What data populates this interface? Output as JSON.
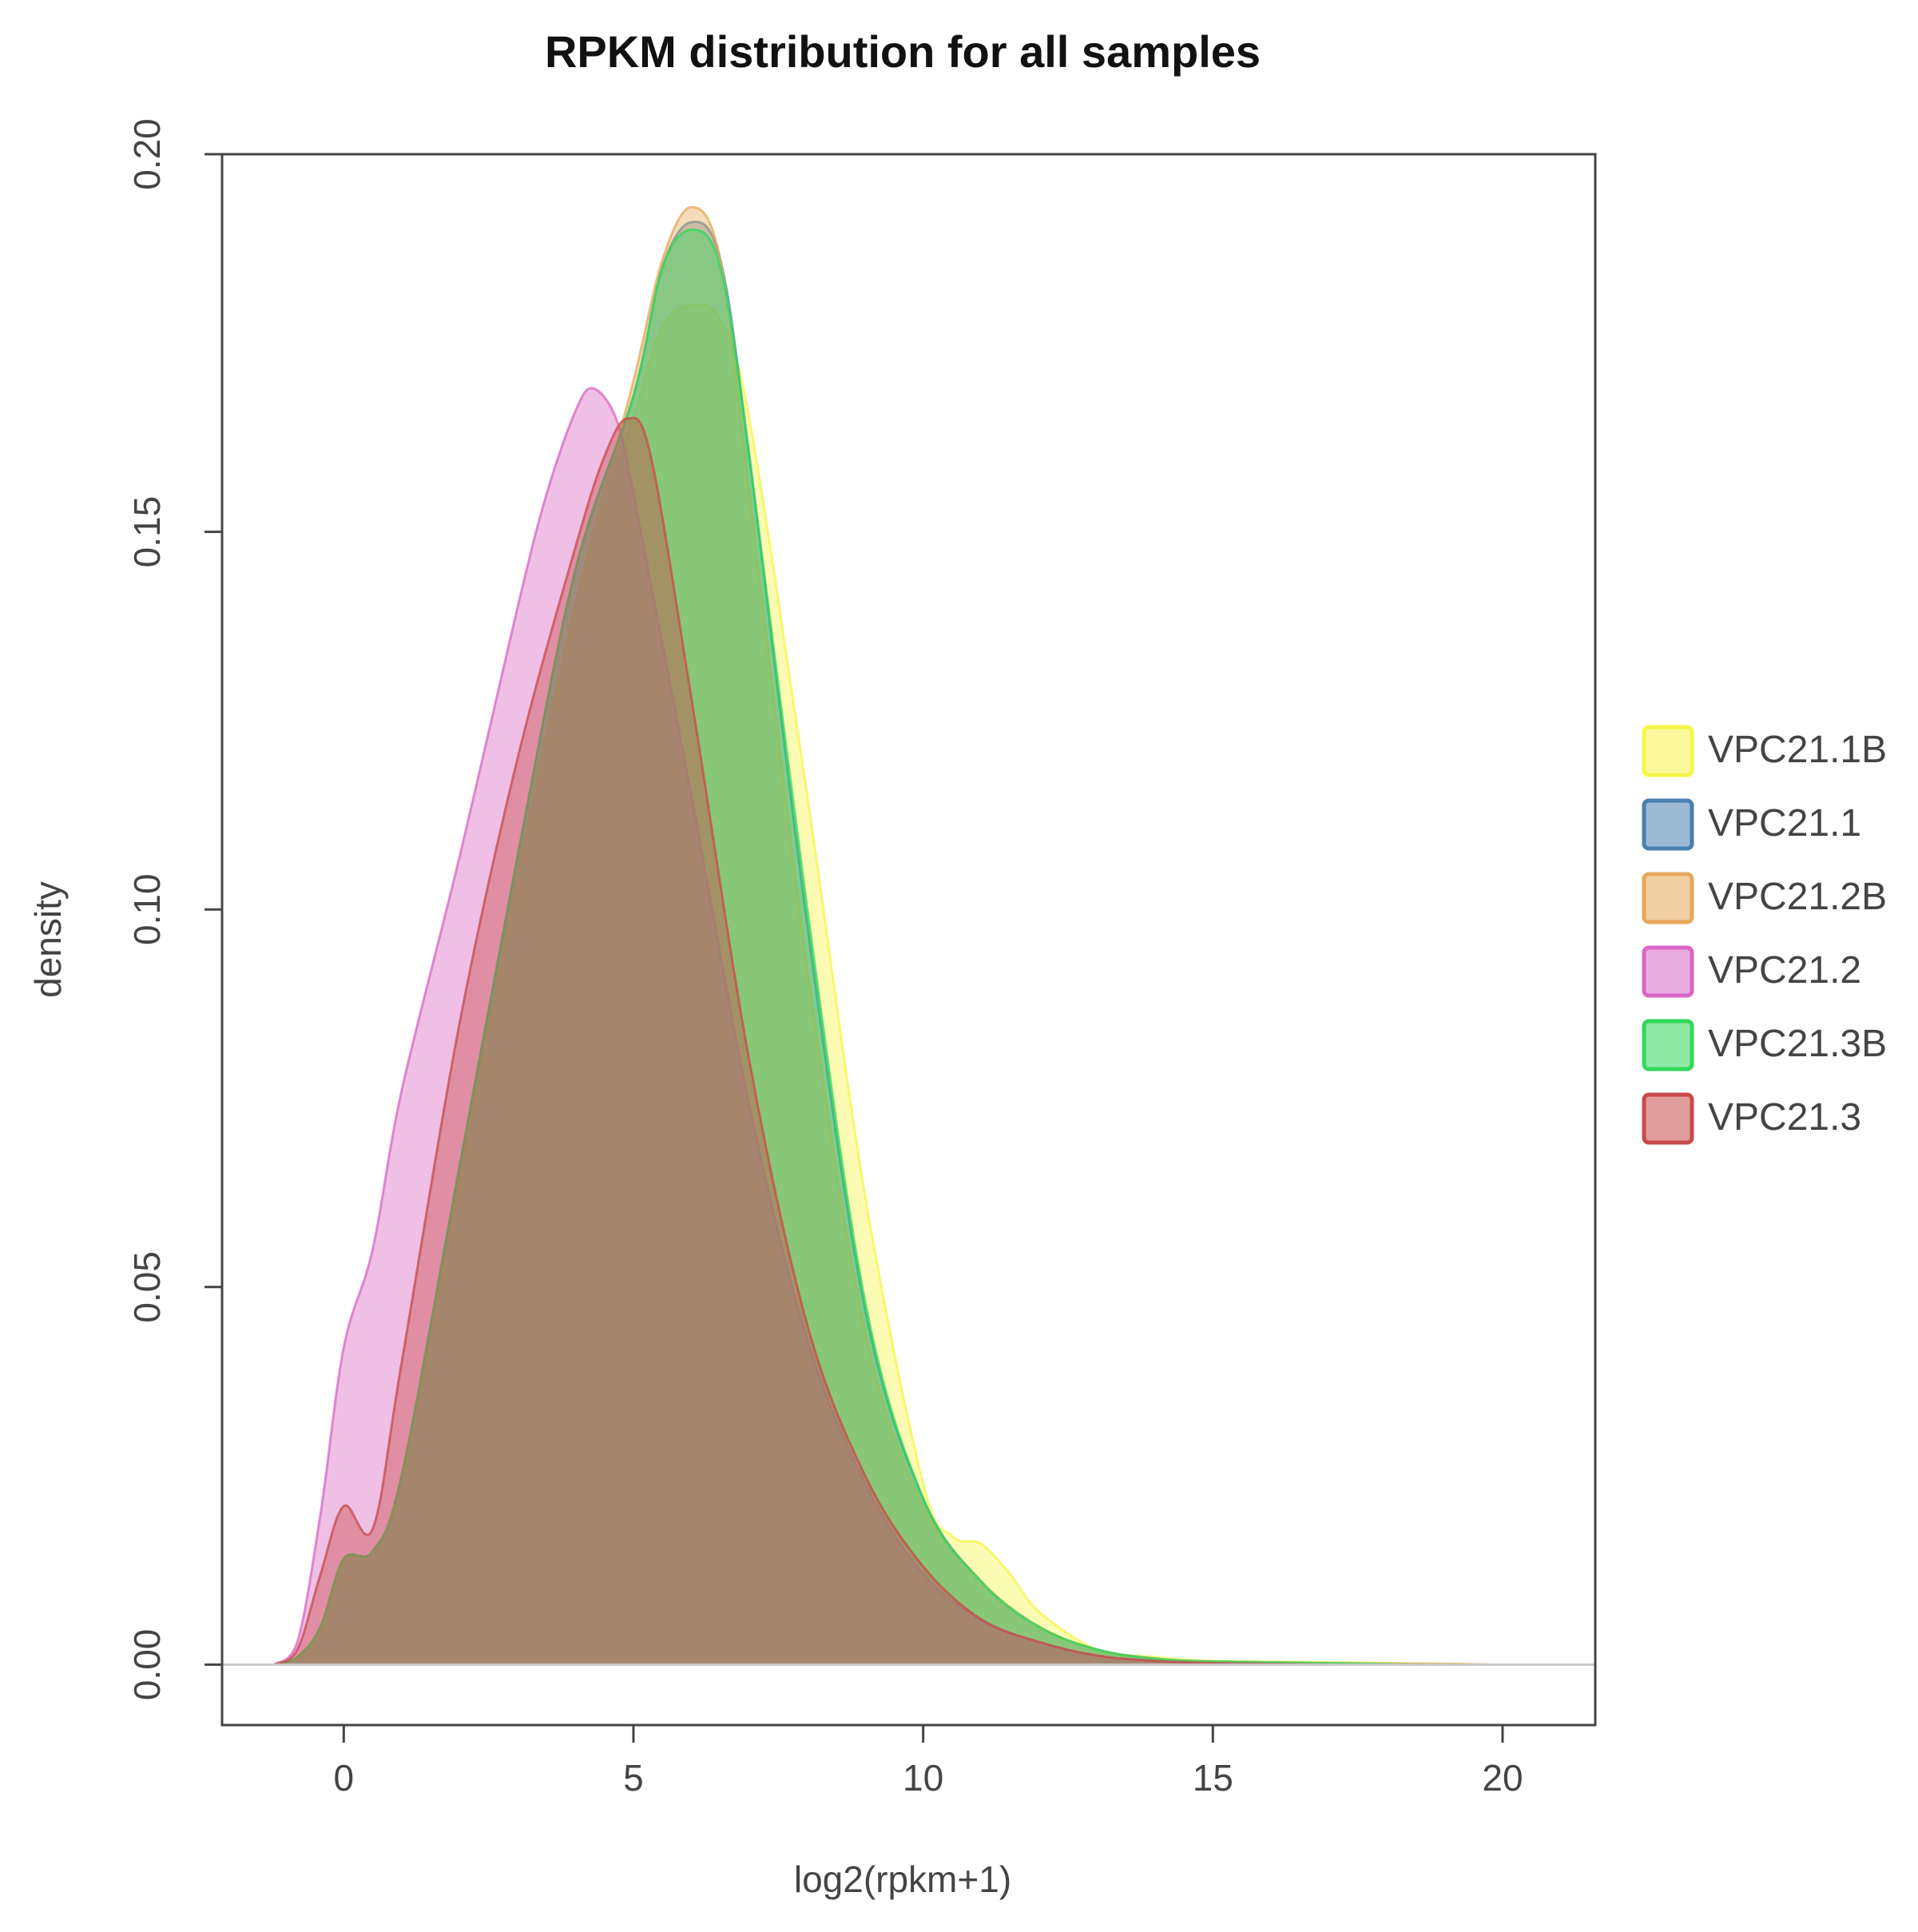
{
  "chart_data": {
    "type": "area",
    "title": "RPKM distribution for all samples",
    "xlabel": "log2(rpkm+1)",
    "ylabel": "density",
    "xlim": [
      -2.1,
      21.6
    ],
    "ylim": [
      -0.008,
      0.2
    ],
    "xticks": [
      0,
      5,
      10,
      15,
      20
    ],
    "yticks": [
      0.0,
      0.05,
      0.1,
      0.15,
      0.2
    ],
    "xtick_labels": [
      "0",
      "5",
      "10",
      "15",
      "20"
    ],
    "ytick_labels": [
      "0.00",
      "0.05",
      "0.10",
      "0.15",
      "0.20"
    ],
    "baseline": 0,
    "grid": false,
    "legend_position": "right",
    "series": [
      {
        "name": "VPC21.1B",
        "color": "#f5f54a",
        "x": [
          -1.2,
          -0.8,
          -0.4,
          0,
          0.5,
          1.0,
          2.0,
          3.0,
          4.0,
          5.0,
          5.5,
          6.0,
          6.5,
          7.0,
          8.0,
          9.0,
          10.0,
          10.5,
          11.0,
          11.5,
          12.0,
          13.0,
          14.0,
          15.0,
          17.0,
          19.0,
          19.5
        ],
        "y": [
          0,
          0.001,
          0.005,
          0.014,
          0.015,
          0.025,
          0.065,
          0.105,
          0.14,
          0.165,
          0.177,
          0.18,
          0.178,
          0.165,
          0.115,
          0.062,
          0.024,
          0.017,
          0.016,
          0.012,
          0.007,
          0.002,
          0.001,
          0.0005,
          0.0003,
          0.0001,
          0
        ]
      },
      {
        "name": "VPC21.1",
        "color": "#4a7fae",
        "x": [
          -1.2,
          -0.8,
          -0.4,
          0,
          0.5,
          1.0,
          2.0,
          3.0,
          4.0,
          5.0,
          5.5,
          6.0,
          6.5,
          7.0,
          8.0,
          9.0,
          10.0,
          11.0,
          12.0,
          13.0,
          14.0,
          15.0,
          17.0,
          19.0
        ],
        "y": [
          0,
          0.001,
          0.005,
          0.014,
          0.015,
          0.025,
          0.066,
          0.107,
          0.145,
          0.168,
          0.185,
          0.191,
          0.186,
          0.16,
          0.098,
          0.047,
          0.022,
          0.011,
          0.005,
          0.002,
          0.0008,
          0.0004,
          0.0002,
          0
        ]
      },
      {
        "name": "VPC21.2B",
        "color": "#e6a95a",
        "x": [
          -1.2,
          -0.8,
          -0.4,
          0,
          0.5,
          1.0,
          2.0,
          3.0,
          4.0,
          5.0,
          5.5,
          6.0,
          6.5,
          7.0,
          8.0,
          9.0,
          10.0,
          11.0,
          12.0,
          13.0,
          14.0,
          15.0,
          17.0,
          19.0,
          19.8
        ],
        "y": [
          0,
          0.001,
          0.005,
          0.014,
          0.015,
          0.025,
          0.064,
          0.103,
          0.14,
          0.17,
          0.186,
          0.193,
          0.186,
          0.155,
          0.092,
          0.044,
          0.021,
          0.011,
          0.005,
          0.002,
          0.0008,
          0.0004,
          0.0002,
          0.0001,
          0
        ]
      },
      {
        "name": "VPC21.2",
        "color": "#d966c4",
        "x": [
          -1.2,
          -0.8,
          -0.4,
          0,
          0.5,
          1.0,
          2.0,
          3.0,
          3.5,
          4.0,
          4.3,
          4.7,
          5.0,
          6.0,
          7.0,
          8.0,
          9.0,
          10.0,
          11.0,
          12.0,
          13.0,
          14.0,
          15.0,
          17.0
        ],
        "y": [
          0,
          0.003,
          0.02,
          0.042,
          0.055,
          0.076,
          0.107,
          0.14,
          0.155,
          0.166,
          0.169,
          0.165,
          0.155,
          0.115,
          0.074,
          0.043,
          0.024,
          0.012,
          0.006,
          0.003,
          0.0012,
          0.0005,
          0.0002,
          0
        ]
      },
      {
        "name": "VPC21.3B",
        "color": "#2fd95a",
        "x": [
          -1.2,
          -0.8,
          -0.4,
          0,
          0.5,
          1.0,
          2.0,
          3.0,
          4.0,
          5.0,
          5.5,
          6.0,
          6.5,
          7.0,
          8.0,
          9.0,
          10.0,
          11.0,
          12.0,
          13.0,
          14.0,
          15.0,
          17.0,
          18.5
        ],
        "y": [
          0,
          0.001,
          0.005,
          0.014,
          0.015,
          0.025,
          0.066,
          0.107,
          0.145,
          0.168,
          0.185,
          0.19,
          0.185,
          0.16,
          0.1,
          0.048,
          0.022,
          0.011,
          0.005,
          0.002,
          0.0008,
          0.0004,
          0.0002,
          0
        ]
      },
      {
        "name": "VPC21.3",
        "color": "#c94a4a",
        "x": [
          -1.2,
          -0.8,
          -0.4,
          0,
          0.5,
          1.0,
          2.0,
          3.0,
          4.0,
          4.5,
          4.9,
          5.3,
          6.0,
          7.0,
          8.0,
          9.0,
          10.0,
          11.0,
          12.0,
          13.0,
          14.0,
          15.0,
          17.0
        ],
        "y": [
          0,
          0.002,
          0.012,
          0.021,
          0.018,
          0.04,
          0.085,
          0.12,
          0.148,
          0.16,
          0.165,
          0.16,
          0.128,
          0.08,
          0.045,
          0.025,
          0.013,
          0.006,
          0.003,
          0.0012,
          0.0005,
          0.0002,
          0
        ]
      }
    ]
  }
}
